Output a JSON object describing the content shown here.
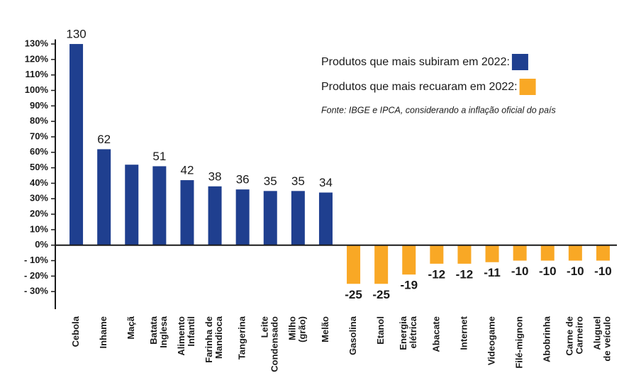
{
  "chart_data": {
    "type": "bar",
    "categories": [
      "Cebola",
      "Inhame",
      "Maçã",
      "Batata\nInglesa",
      "Alimento\nInfantil",
      "Farinha de\nMandioca",
      "Tangerina",
      "Leite\nCondensado",
      "Milho\n(grão)",
      "Melão",
      "Gasolina",
      "Etanol",
      "Energia\nelétrica",
      "Abacate",
      "Internet",
      "Videogame",
      "Filé-mignon",
      "Abobrinha",
      "Carne de\nCarneiro",
      "Aluguel\nde veículo"
    ],
    "series": [
      {
        "name": "Produtos que mais subiram em 2022:",
        "color": "#1f3f8f",
        "values": [
          130,
          62,
          52,
          51,
          42,
          38,
          36,
          35,
          35,
          34,
          null,
          null,
          null,
          null,
          null,
          null,
          null,
          null,
          null,
          null
        ],
        "value_labels": [
          "130",
          "62",
          null,
          "51",
          "42",
          "38",
          "36",
          "35",
          "35",
          "34",
          null,
          null,
          null,
          null,
          null,
          null,
          null,
          null,
          null,
          null
        ]
      },
      {
        "name": "Produtos que mais recuaram em 2022:",
        "color": "#f9a825",
        "values": [
          null,
          null,
          null,
          null,
          null,
          null,
          null,
          null,
          null,
          null,
          -25,
          -25,
          -19,
          -12,
          -12,
          -11,
          -10,
          -10,
          -10,
          -10
        ]
      }
    ],
    "annotation": "Fonte: IBGE e IPCA, considerando a inflação oficial do país",
    "ylim": [
      -40,
      133
    ],
    "yticks": [
      {
        "value": -30,
        "label": "- 30%"
      },
      {
        "value": -20,
        "label": "- 20%"
      },
      {
        "value": -10,
        "label": "- 10%"
      },
      {
        "value": 0,
        "label": "0%"
      },
      {
        "value": 10,
        "label": "10%"
      },
      {
        "value": 20,
        "label": "20%"
      },
      {
        "value": 30,
        "label": "30%"
      },
      {
        "value": 40,
        "label": "40%"
      },
      {
        "value": 50,
        "label": "50%"
      },
      {
        "value": 60,
        "label": "60%"
      },
      {
        "value": 70,
        "label": "70%"
      },
      {
        "value": 80,
        "label": "80%"
      },
      {
        "value": 90,
        "label": "90%"
      },
      {
        "value": 100,
        "label": "100%"
      },
      {
        "value": 110,
        "label": "110%"
      },
      {
        "value": 120,
        "label": "120%"
      },
      {
        "value": 130,
        "label": "130%"
      }
    ],
    "grid": false
  }
}
